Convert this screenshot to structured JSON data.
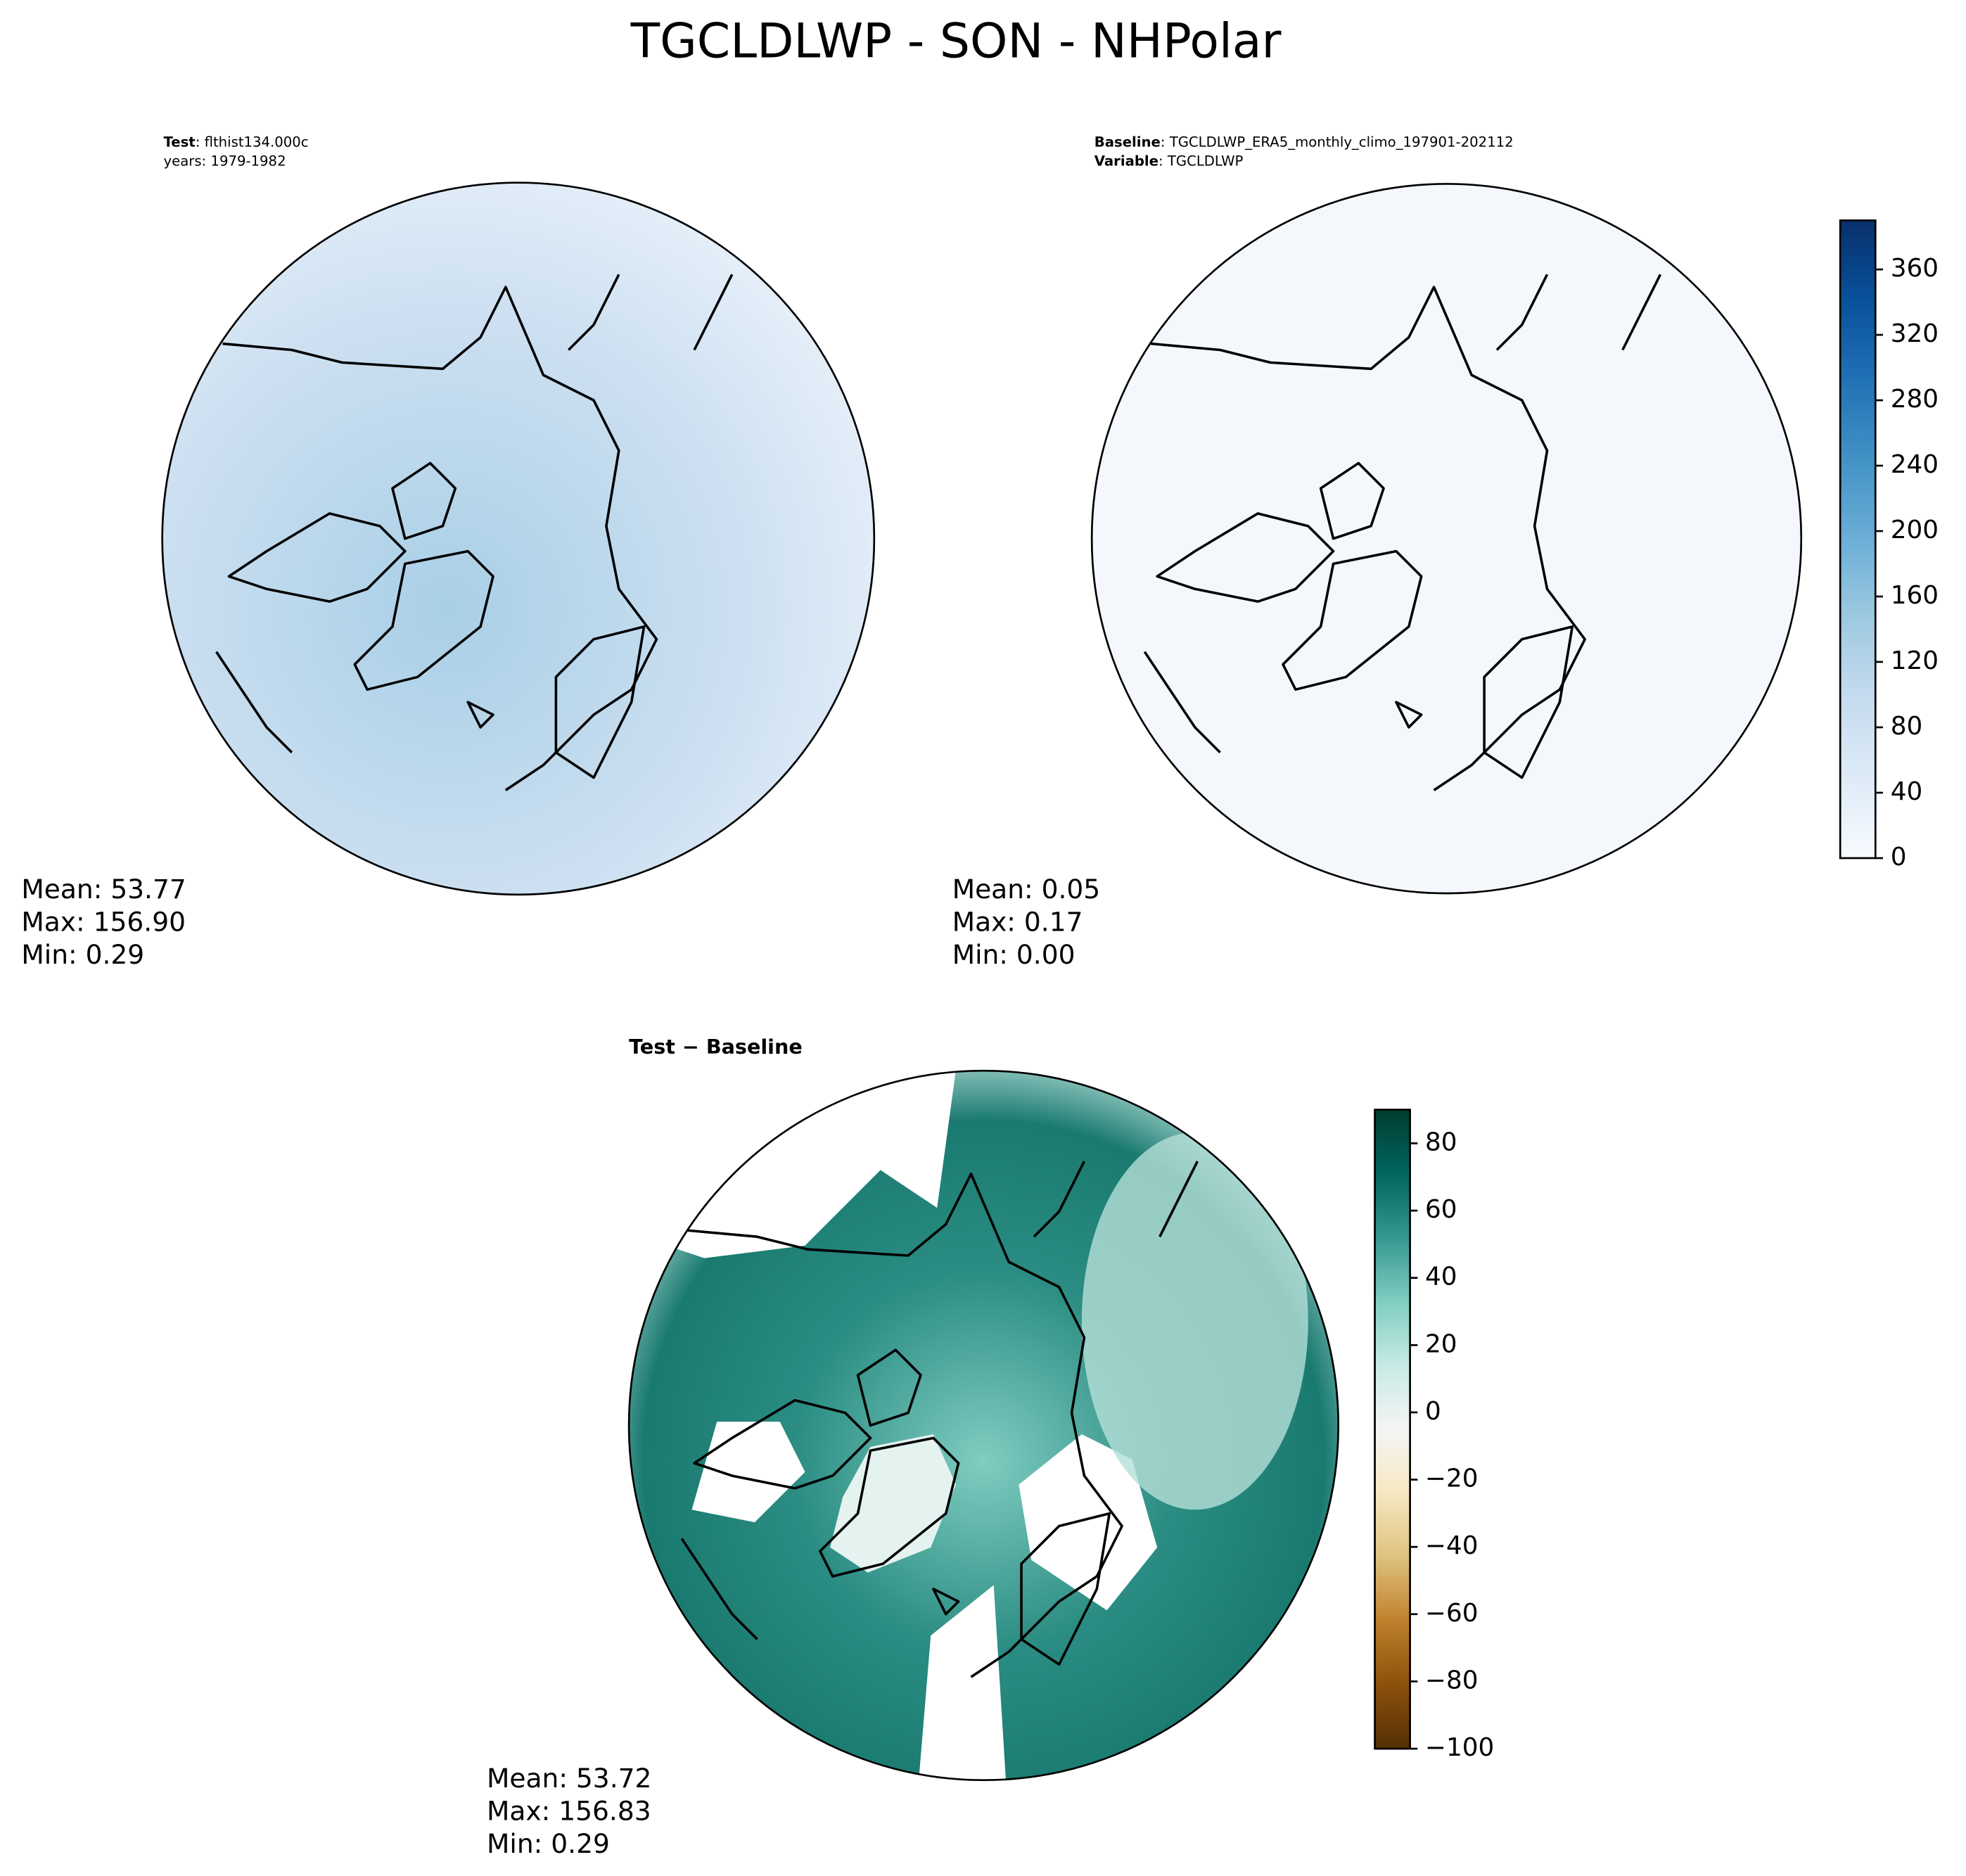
{
  "chart_data": [
    {
      "type": "map",
      "suptitle": "TGCLDLWP - SON - NHPolar",
      "header": [
        [
          "Test",
          ": flthist134.000c"
        ],
        [
          "",
          "years: 1979-1982"
        ]
      ],
      "stats": [
        "Mean: 53.77",
        "Max: 156.90",
        "Min:  0.29"
      ],
      "colormap": [
        "#f7fbff",
        "#deebf7",
        "#c6dbef",
        "#9ecae1",
        "#6baed6",
        "#4292c6",
        "#2171b5",
        "#08519c",
        "#08306b"
      ]
    },
    {
      "type": "map",
      "header": [
        [
          "Baseline",
          ": TGCLDLWP_ERA5_monthly_climo_197901-202112"
        ],
        [
          "Variable",
          ": TGCLDLWP"
        ]
      ],
      "stats": [
        "Mean:  0.05",
        "Max:  0.17",
        "Min:  0.00"
      ],
      "colorbar": {
        "ylim": [
          0,
          390
        ],
        "yticks": [
          0,
          40,
          80,
          120,
          160,
          200,
          240,
          280,
          320,
          360
        ],
        "colormap": [
          "#f7fbff",
          "#deebf7",
          "#c6dbef",
          "#9ecae1",
          "#6baed6",
          "#4292c6",
          "#2171b5",
          "#08519c",
          "#08306b"
        ]
      }
    },
    {
      "type": "map",
      "title": "Test − Baseline",
      "stats": [
        "Mean: 53.72",
        "Max: 156.83",
        "Min:  0.29"
      ],
      "colorbar": {
        "ylim": [
          -100,
          90
        ],
        "yticks": [
          {
            "value": -100,
            "label": "−100"
          },
          {
            "value": -80,
            "label": "−80"
          },
          {
            "value": -60,
            "label": "−60"
          },
          {
            "value": -40,
            "label": "−40"
          },
          {
            "value": -20,
            "label": "−20"
          },
          0,
          20,
          40,
          60,
          80
        ],
        "colormap": [
          "#543005",
          "#8c510a",
          "#bf812d",
          "#dfc27d",
          "#f6e8c3",
          "#f5f5f5",
          "#c7eae5",
          "#80cdc1",
          "#35978f",
          "#01665e",
          "#003c30"
        ]
      }
    }
  ]
}
